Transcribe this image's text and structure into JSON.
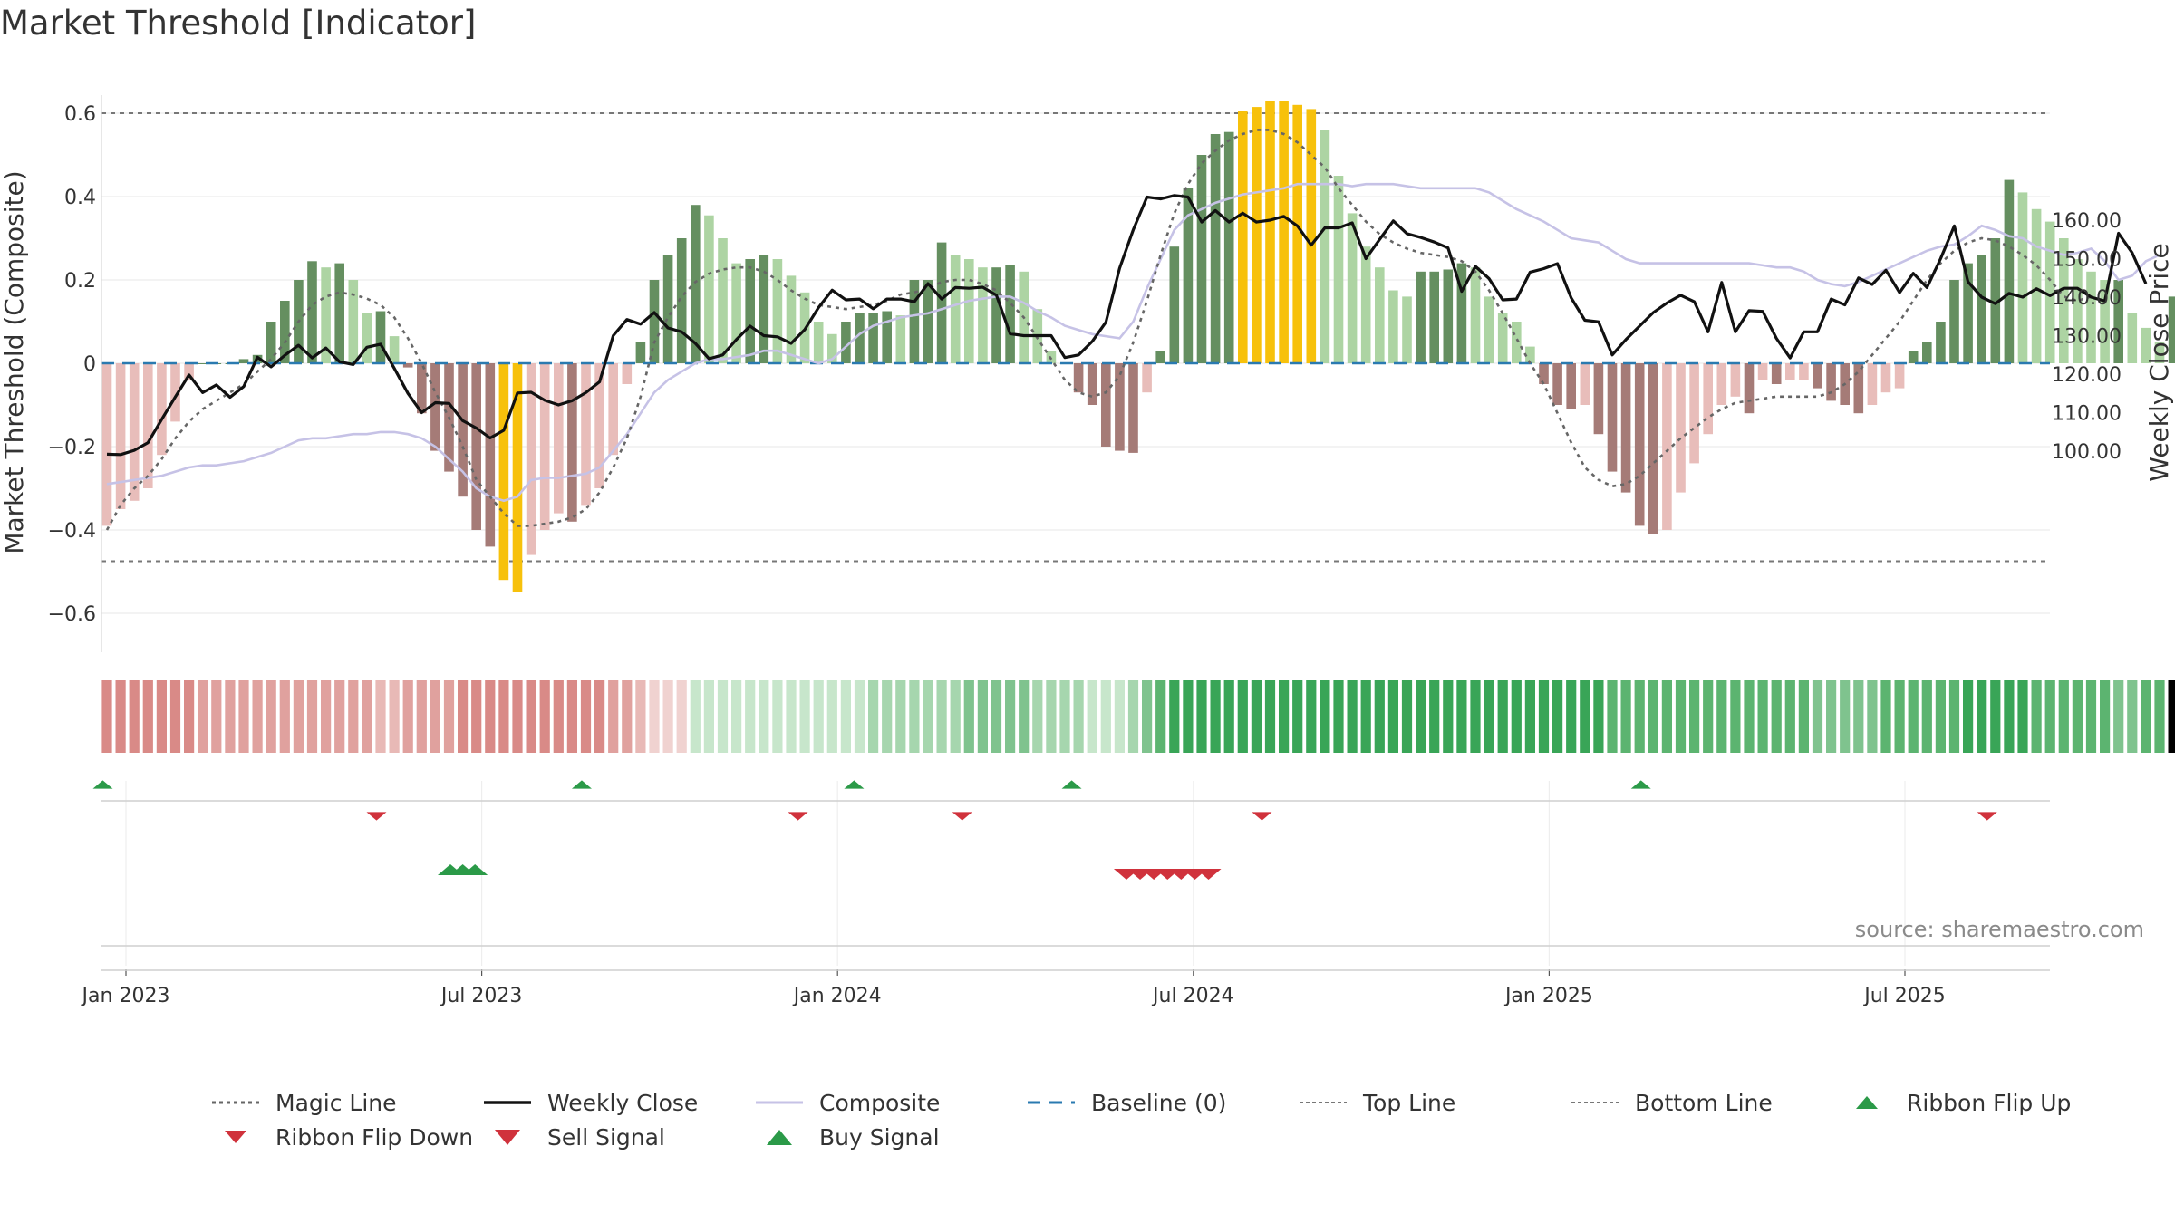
{
  "chart_data": {
    "type": "bar",
    "title": "Market Threshold [Indicator]",
    "ylabel_left": "Market Threshold (Composite)",
    "ylabel_right": "Weekly Close Price",
    "source": "source: sharemaestro.com",
    "ylim_left": [
      -0.7,
      0.7
    ],
    "ylim_right": [
      92.9,
      168.6
    ],
    "yticks_left": [
      {
        "v": 0.6,
        "label": "0.6"
      },
      {
        "v": 0.4,
        "label": "0.4"
      },
      {
        "v": 0.2,
        "label": "0.2"
      },
      {
        "v": 0,
        "label": "0"
      },
      {
        "v": -0.2,
        "label": "−0.2"
      },
      {
        "v": -0.4,
        "label": "−0.4"
      },
      {
        "v": -0.6,
        "label": "−0.6"
      }
    ],
    "yticks_right": [
      {
        "v": 160,
        "label": "160.00"
      },
      {
        "v": 150,
        "label": "150.00"
      },
      {
        "v": 140,
        "label": "140.00"
      },
      {
        "v": 130,
        "label": "130.00"
      },
      {
        "v": 120,
        "label": "120.00"
      },
      {
        "v": 110,
        "label": "110.00"
      },
      {
        "v": 100,
        "label": "100.00"
      }
    ],
    "xticks": [
      {
        "week": 0,
        "label": "Jan 2023"
      },
      {
        "week": 26,
        "label": "Jul 2023"
      },
      {
        "week": 52,
        "label": "Jan 2024"
      },
      {
        "week": 78,
        "label": "Jul 2024"
      },
      {
        "week": 104,
        "label": "Jan 2025"
      },
      {
        "week": 130,
        "label": "Jul 2025"
      }
    ],
    "x_start": "2022-12-26",
    "x_step": "1 week",
    "top_line": 0.6,
    "bottom_line": -0.475,
    "composite": [
      -0.39,
      -0.35,
      -0.33,
      -0.3,
      -0.22,
      -0.14,
      -0.04,
      0,
      0,
      0,
      0.01,
      0.02,
      0.1,
      0.15,
      0.2,
      0.245,
      0.23,
      0.24,
      0.2,
      0.12,
      0.125,
      0.065,
      -0.01,
      -0.12,
      -0.21,
      -0.26,
      -0.32,
      -0.4,
      -0.44,
      -0.52,
      -0.55,
      -0.46,
      -0.4,
      -0.36,
      -0.38,
      -0.34,
      -0.3,
      -0.22,
      -0.05,
      0.05,
      0.2,
      0.26,
      0.3,
      0.38,
      0.355,
      0.3,
      0.24,
      0.25,
      0.26,
      0.25,
      0.21,
      0.17,
      0.1,
      0.07,
      0.1,
      0.12,
      0.12,
      0.125,
      0.115,
      0.2,
      0.2,
      0.29,
      0.26,
      0.25,
      0.23,
      0.23,
      0.235,
      0.22,
      0.13,
      0.03,
      0.0,
      -0.07,
      -0.1,
      -0.2,
      -0.21,
      -0.215,
      -0.07,
      0.03,
      0.28,
      0.42,
      0.5,
      0.55,
      0.555,
      0.605,
      0.615,
      0.63,
      0.63,
      0.62,
      0.61,
      0.56,
      0.45,
      0.36,
      0.28,
      0.23,
      0.175,
      0.16,
      0.22,
      0.22,
      0.225,
      0.24,
      0.23,
      0.16,
      0.12,
      0.1,
      0.04,
      -0.05,
      -0.1,
      -0.11,
      -0.1,
      -0.17,
      -0.26,
      -0.31,
      -0.39,
      -0.41,
      -0.4,
      -0.31,
      -0.24,
      -0.17,
      -0.1,
      -0.08,
      -0.12,
      -0.04,
      -0.05,
      -0.04,
      -0.04,
      -0.06,
      -0.09,
      -0.1,
      -0.12,
      -0.1,
      -0.07,
      -0.06,
      0.03,
      0.05,
      0.1,
      0.2,
      0.24,
      0.26,
      0.3,
      0.44,
      0.41,
      0.37,
      0.34,
      0.3,
      0.25,
      0.22,
      0.2,
      0.2,
      0.12,
      0.085,
      0.05,
      0.16,
      0.18,
      0.2
    ],
    "weekly_close": [
      99.2,
      99.1,
      100.2,
      102.2,
      108.2,
      114.1,
      119.8,
      115.2,
      117.2,
      114.0,
      116.8,
      124.4,
      121.9,
      124.9,
      127.5,
      124.2,
      126.8,
      123.2,
      122.5,
      127.0,
      127.8,
      121.5,
      115.0,
      110.0,
      112.6,
      112.4,
      107.9,
      106.0,
      103.4,
      105.4,
      115.1,
      115.3,
      113.2,
      112.0,
      113.1,
      115.2,
      118.0,
      130.0,
      134.2,
      133.0,
      136.0,
      132.0,
      131.0,
      128.0,
      124.0,
      125.0,
      129.0,
      132.5,
      130.0,
      129.7,
      128.0,
      131.6,
      137.3,
      141.8,
      139.3,
      139.5,
      137.0,
      139.5,
      139.5,
      138.8,
      143.5,
      139.5,
      142.5,
      142.3,
      142.6,
      140.5,
      130.5,
      130.0,
      130.0,
      130.0,
      124.3,
      125.0,
      128.5,
      133.5,
      147.5,
      157.5,
      166.0,
      165.5,
      166.4,
      166.0,
      159.5,
      162.5,
      159.5,
      161.8,
      159.5,
      160.0,
      161.0,
      158.5,
      153.5,
      158.0,
      158.0,
      159.3,
      150.0,
      155.0,
      159.8,
      156.5,
      155.5,
      154.3,
      152.8,
      141.5,
      148.0,
      144.8,
      139.3,
      139.5,
      146.5,
      147.4,
      148.7,
      139.8,
      134.0,
      133.6,
      125.0,
      129.0,
      132.5,
      136.0,
      138.5,
      140.5,
      138.8,
      131.0,
      143.8,
      131.0,
      136.5,
      136.3,
      129.3,
      124.2,
      131.0,
      131.0,
      139.5,
      138.0,
      145.0,
      143.3,
      147.0,
      141.2,
      146.2,
      142.5,
      150.0,
      158.5,
      144.0,
      140.0,
      138.3,
      141.0,
      140.0,
      142.2,
      140.4,
      142.3,
      142.3,
      140.0,
      139.0,
      156.6,
      151.5,
      143.5
    ],
    "magic_line": [
      -0.4,
      -0.34,
      -0.3,
      -0.27,
      -0.23,
      -0.18,
      -0.14,
      -0.11,
      -0.09,
      -0.07,
      -0.05,
      -0.02,
      0.01,
      0.05,
      0.1,
      0.14,
      0.16,
      0.17,
      0.165,
      0.155,
      0.14,
      0.11,
      0.06,
      0,
      -0.07,
      -0.13,
      -0.2,
      -0.28,
      -0.32,
      -0.36,
      -0.39,
      -0.39,
      -0.385,
      -0.38,
      -0.37,
      -0.35,
      -0.31,
      -0.25,
      -0.18,
      -0.08,
      0.05,
      0.11,
      0.16,
      0.195,
      0.215,
      0.225,
      0.23,
      0.23,
      0.22,
      0.2,
      0.175,
      0.155,
      0.14,
      0.135,
      0.13,
      0.135,
      0.14,
      0.15,
      0.165,
      0.17,
      0.18,
      0.195,
      0.2,
      0.2,
      0.19,
      0.175,
      0.145,
      0.11,
      0.06,
      0.01,
      -0.04,
      -0.07,
      -0.08,
      -0.07,
      -0.03,
      0.05,
      0.15,
      0.26,
      0.36,
      0.43,
      0.48,
      0.51,
      0.535,
      0.55,
      0.56,
      0.56,
      0.55,
      0.53,
      0.5,
      0.47,
      0.42,
      0.38,
      0.34,
      0.31,
      0.29,
      0.275,
      0.265,
      0.26,
      0.255,
      0.245,
      0.22,
      0.175,
      0.12,
      0.06,
      0,
      -0.05,
      -0.12,
      -0.19,
      -0.25,
      -0.28,
      -0.295,
      -0.29,
      -0.27,
      -0.24,
      -0.21,
      -0.18,
      -0.155,
      -0.13,
      -0.11,
      -0.095,
      -0.09,
      -0.085,
      -0.08,
      -0.08,
      -0.08,
      -0.08,
      -0.07,
      -0.05,
      -0.02,
      0.02,
      0.06,
      0.1,
      0.15,
      0.2,
      0.24,
      0.27,
      0.29,
      0.3,
      0.295,
      0.28,
      0.26,
      0.235,
      0.2,
      0.16,
      0.15,
      0.16
    ],
    "composite_smooth": [
      -0.29,
      -0.285,
      -0.28,
      -0.275,
      -0.27,
      -0.26,
      -0.25,
      -0.245,
      -0.245,
      -0.24,
      -0.235,
      -0.225,
      -0.215,
      -0.2,
      -0.185,
      -0.18,
      -0.18,
      -0.175,
      -0.17,
      -0.17,
      -0.165,
      -0.165,
      -0.17,
      -0.18,
      -0.2,
      -0.23,
      -0.26,
      -0.3,
      -0.32,
      -0.33,
      -0.32,
      -0.28,
      -0.275,
      -0.275,
      -0.27,
      -0.265,
      -0.25,
      -0.21,
      -0.17,
      -0.12,
      -0.07,
      -0.04,
      -0.02,
      0,
      0.01,
      0.01,
      0.015,
      0.02,
      0.03,
      0.03,
      0.02,
      0.01,
      0,
      0.01,
      0.04,
      0.07,
      0.09,
      0.1,
      0.11,
      0.115,
      0.12,
      0.13,
      0.14,
      0.15,
      0.155,
      0.16,
      0.16,
      0.145,
      0.125,
      0.11,
      0.09,
      0.08,
      0.07,
      0.065,
      0.06,
      0.1,
      0.18,
      0.25,
      0.32,
      0.355,
      0.37,
      0.385,
      0.395,
      0.405,
      0.41,
      0.415,
      0.42,
      0.43,
      0.43,
      0.43,
      0.43,
      0.425,
      0.43,
      0.43,
      0.43,
      0.425,
      0.42,
      0.42,
      0.42,
      0.42,
      0.42,
      0.41,
      0.39,
      0.37,
      0.355,
      0.34,
      0.32,
      0.3,
      0.295,
      0.29,
      0.27,
      0.25,
      0.24,
      0.24,
      0.24,
      0.24,
      0.24,
      0.24,
      0.24,
      0.24,
      0.24,
      0.235,
      0.23,
      0.23,
      0.22,
      0.2,
      0.19,
      0.185,
      0.195,
      0.21,
      0.225,
      0.24,
      0.255,
      0.27,
      0.28,
      0.285,
      0.305,
      0.33,
      0.32,
      0.305,
      0.3,
      0.28,
      0.27,
      0.26,
      0.265,
      0.275,
      0.245,
      0.2,
      0.21,
      0.245,
      0.26
    ],
    "buy_signals_weeks": [
      25.1,
      26.0,
      26.9
    ],
    "sell_signals_weeks": [
      74.5,
      75.5,
      76.5,
      77.5,
      78.5,
      79.5,
      80.5
    ],
    "ribbon_flip_up_weeks": [
      -0.3,
      34.7,
      54.6,
      70.5,
      112.1
    ],
    "ribbon_flip_down_weeks": [
      19.7,
      50.5,
      62.5,
      84.4,
      137.4
    ],
    "legend": [
      "Magic Line",
      "Weekly Close",
      "Composite",
      "Baseline (0)",
      "Top Line",
      "Bottom Line",
      "Ribbon Flip Up",
      "Ribbon Flip Down",
      "Sell Signal",
      "Buy Signal"
    ],
    "colors": {
      "dark_green": "#658f60",
      "light_green": "#add4a3",
      "dark_red": "#a57b77",
      "light_red": "#e8bdba",
      "yellow": "#f7c10b",
      "weekly_close": "#111111",
      "composite_line": "#c6c2e6",
      "magic_line": "#666666",
      "baseline": "#2a7ab0",
      "threshold_lines": "#777777",
      "signal_green": "#2b9a48",
      "signal_red": "#d0323c"
    }
  }
}
